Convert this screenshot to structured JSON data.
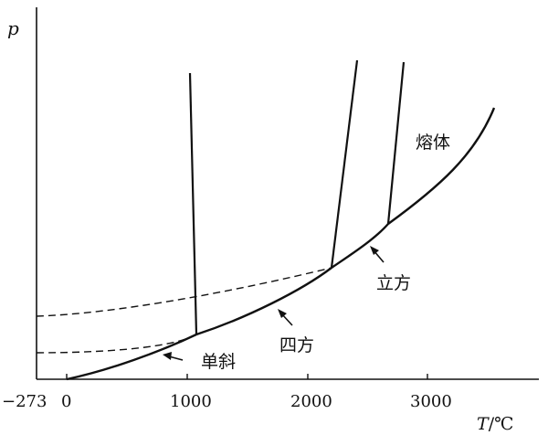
{
  "axes": {
    "y_label": "p",
    "x_label_var": "T",
    "x_label_unit": "/℃",
    "x_ticks": [
      "−273",
      "0",
      "1000",
      "2000",
      "3000"
    ],
    "x_tick_values": [
      -273,
      0,
      1000,
      2000,
      3000
    ]
  },
  "phases": {
    "melt": "熔体",
    "cubic": "立方",
    "tetragonal": "四方",
    "monoclinic": "单斜"
  },
  "colors": {
    "ink": "#111111",
    "background": "#ffffff"
  }
}
